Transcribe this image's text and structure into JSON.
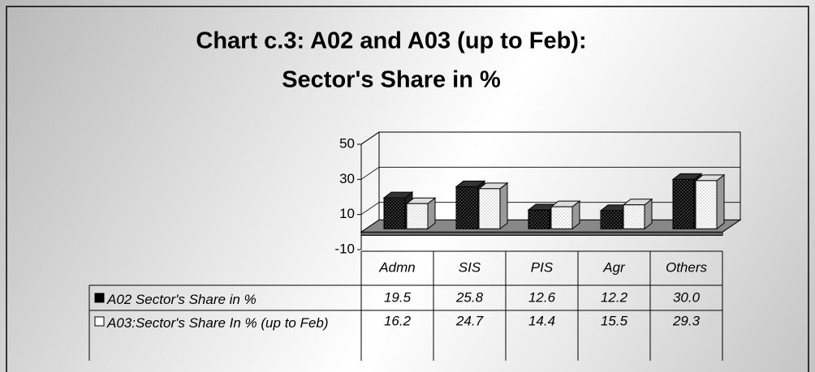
{
  "chart_data": {
    "type": "bar3d",
    "title": "Chart c.3: A02 and A03 (up to Feb):",
    "subtitle": "Sector's Share in %",
    "categories": [
      "Admn",
      "SIS",
      "PIS",
      "Agr",
      "Others"
    ],
    "series": [
      {
        "name": "A02 Sector's Share in %",
        "color": "#000000",
        "values": [
          19.5,
          25.8,
          12.6,
          12.2,
          30.0
        ],
        "value_labels": [
          "19.5",
          "25.8",
          "12.6",
          "12.2",
          "30.0"
        ]
      },
      {
        "name": "A03:Sector's Share In % (up to Feb)",
        "color": "#ffffff",
        "values": [
          16.2,
          24.7,
          14.4,
          15.5,
          29.3
        ],
        "value_labels": [
          "16.2",
          "24.7",
          "14.4",
          "15.5",
          "29.3"
        ]
      }
    ],
    "ylim": [
      -10,
      50
    ],
    "yticks": [
      -10,
      10,
      30,
      50
    ],
    "grid": true
  }
}
